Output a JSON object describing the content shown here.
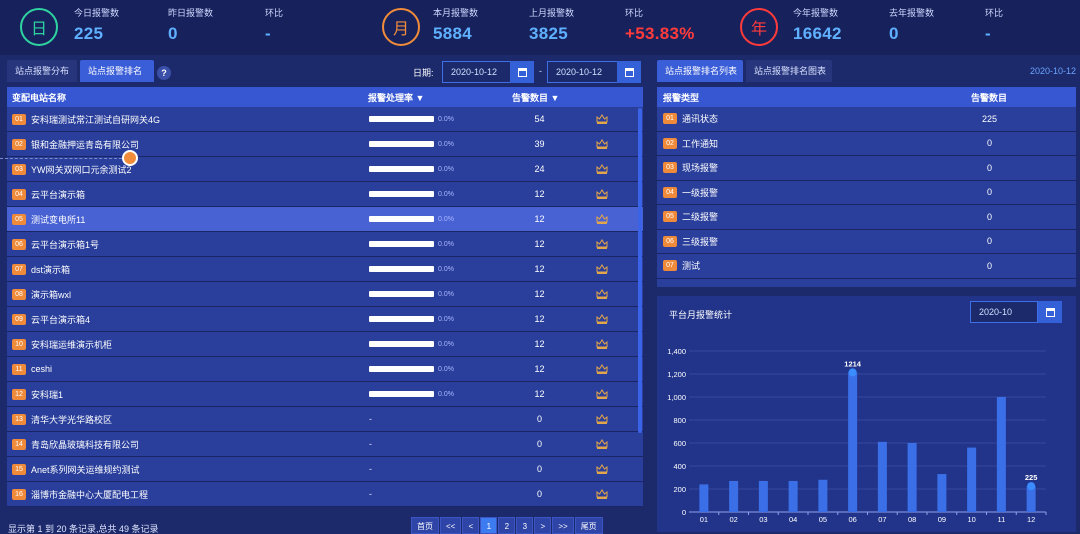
{
  "stats": {
    "day": {
      "icon": "日",
      "today_label": "今日报警数",
      "today_value": "225",
      "yesterday_label": "昨日报警数",
      "yesterday_value": "0",
      "ratio_label": "环比",
      "ratio_value": "-"
    },
    "month": {
      "icon": "月",
      "this_label": "本月报警数",
      "this_value": "5884",
      "last_label": "上月报警数",
      "last_value": "3825",
      "ratio_label": "环比",
      "ratio_value": "+53.83%"
    },
    "year": {
      "icon": "年",
      "this_label": "今年报警数",
      "this_value": "16642",
      "last_label": "去年报警数",
      "last_value": "0",
      "ratio_label": "环比",
      "ratio_value": "-"
    },
    "colors": {
      "day": "#2fd3a0",
      "month": "#f08c3a",
      "year": "#ff3b3b"
    }
  },
  "left": {
    "tabs": [
      "站点报警分布",
      "站点报警排名"
    ],
    "help": "?",
    "date_label": "日期:",
    "date_from": "2020-10-12",
    "date_to": "2020-10-12",
    "date_sep": "-",
    "headers": {
      "name": "变配电站名称",
      "rate": "报警处理率 ▼",
      "count": "告警数目 ▼"
    },
    "rows": [
      {
        "rank": "01",
        "name": "安科瑞测试常江测试自研网关4G",
        "rate": "0.0%",
        "count": "54"
      },
      {
        "rank": "02",
        "name": "银和金融押运青岛有限公司",
        "rate": "0.0%",
        "count": "39"
      },
      {
        "rank": "03",
        "name": "YW网关双网口元余测试2",
        "rate": "0.0%",
        "count": "24"
      },
      {
        "rank": "04",
        "name": "云平台演示箱",
        "rate": "0.0%",
        "count": "12"
      },
      {
        "rank": "05",
        "name": "测试变电所11",
        "rate": "0.0%",
        "count": "12"
      },
      {
        "rank": "06",
        "name": "云平台演示箱1号",
        "rate": "0.0%",
        "count": "12"
      },
      {
        "rank": "07",
        "name": "dst演示箱",
        "rate": "0.0%",
        "count": "12"
      },
      {
        "rank": "08",
        "name": "演示箱wxl",
        "rate": "0.0%",
        "count": "12"
      },
      {
        "rank": "09",
        "name": "云平台演示箱4",
        "rate": "0.0%",
        "count": "12"
      },
      {
        "rank": "10",
        "name": "安科瑞运维演示机柜",
        "rate": "0.0%",
        "count": "12"
      },
      {
        "rank": "11",
        "name": "ceshi",
        "rate": "0.0%",
        "count": "12"
      },
      {
        "rank": "12",
        "name": "安科瑞1",
        "rate": "0.0%",
        "count": "12"
      },
      {
        "rank": "13",
        "name": "清华大学光华路校区",
        "rate": "-",
        "count": "0"
      },
      {
        "rank": "14",
        "name": "青岛欣晶玻璃科技有限公司",
        "rate": "-",
        "count": "0"
      },
      {
        "rank": "15",
        "name": "Anet系列网关运维规约测试",
        "rate": "-",
        "count": "0"
      },
      {
        "rank": "16",
        "name": "淄博市金融中心大厦配电工程",
        "rate": "-",
        "count": "0"
      }
    ],
    "footer": "显示第 1 到 20 条记录,总共 49 条记录",
    "pager": [
      "首页",
      "<<",
      "<",
      "1",
      "2",
      "3",
      ">",
      ">>",
      "尾页"
    ],
    "pager_active": "1"
  },
  "right": {
    "tabs": [
      "站点报警排名列表",
      "站点报警排名图表"
    ],
    "date": "2020-10-12",
    "headers": {
      "type": "报警类型",
      "count": "告警数目"
    },
    "rows": [
      {
        "rank": "01",
        "type": "通讯状态",
        "count": "225"
      },
      {
        "rank": "02",
        "type": "工作通知",
        "count": "0"
      },
      {
        "rank": "03",
        "type": "现场报警",
        "count": "0"
      },
      {
        "rank": "04",
        "type": "一级报警",
        "count": "0"
      },
      {
        "rank": "05",
        "type": "二级报警",
        "count": "0"
      },
      {
        "rank": "06",
        "type": "三级报警",
        "count": "0"
      },
      {
        "rank": "07",
        "type": "测试",
        "count": "0"
      }
    ],
    "chart_title": "平台月报警统计",
    "chart_date": "2020-10"
  },
  "chart_data": {
    "type": "bar",
    "title": "平台月报警统计",
    "categories": [
      "01",
      "02",
      "03",
      "04",
      "05",
      "06",
      "07",
      "08",
      "09",
      "10",
      "11",
      "12"
    ],
    "values": [
      240,
      270,
      270,
      270,
      280,
      1214,
      610,
      600,
      330,
      560,
      1000,
      225
    ],
    "data_labels": {
      "06": "1214",
      "12": "225"
    },
    "ylim": [
      0,
      1400
    ],
    "yticks": [
      "0",
      "200",
      "400",
      "600",
      "800",
      "1,000",
      "1,200",
      "1,400"
    ],
    "bar_color": "#3a6fe8",
    "grid": true
  }
}
